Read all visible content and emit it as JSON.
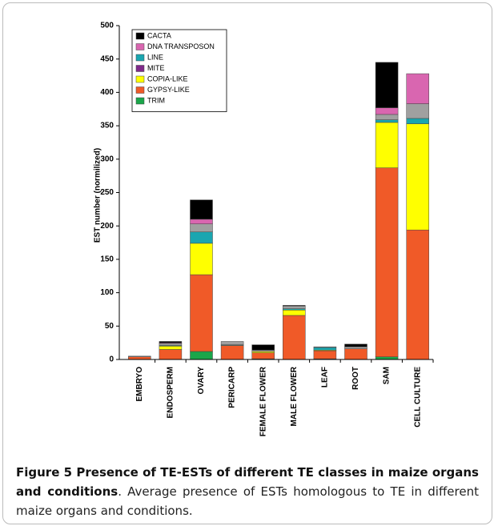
{
  "chart_data": {
    "type": "stacked_bar",
    "y_label": "EST number (normilized)",
    "categories": [
      "EMBRYO",
      "ENDOSPERM",
      "OVARY",
      "PERICARP",
      "FEMALE FLOWER",
      "MALE FLOWER",
      "LEAF",
      "ROOT",
      "SAM",
      "CELL CULTURE"
    ],
    "series": [
      {
        "name": "TRIM",
        "color": "#1aa64a",
        "values": [
          0,
          0,
          12,
          0,
          1,
          0,
          1,
          0,
          4,
          0
        ]
      },
      {
        "name": "GYPSY-LIKE",
        "color": "#f05a28",
        "values": [
          4,
          15,
          115,
          21,
          9,
          66,
          12,
          16,
          283,
          194
        ]
      },
      {
        "name": "COPIA-LIKE",
        "color": "#ffff00",
        "values": [
          0,
          5,
          47,
          0,
          2,
          8,
          1,
          0,
          68,
          159
        ]
      },
      {
        "name": "MITE",
        "color": "#7f2a8a",
        "values": [
          0,
          0,
          0,
          0,
          0,
          0,
          0,
          0,
          0,
          0
        ]
      },
      {
        "name": "LINE",
        "color": "#1aa6b0",
        "values": [
          0,
          1,
          17,
          1,
          0,
          2,
          4,
          0,
          4,
          8
        ]
      },
      {
        "name": null,
        "color": "#a0a0a0",
        "values": [
          1,
          3,
          12,
          5,
          2,
          4,
          1,
          3,
          8,
          22
        ]
      },
      {
        "name": "DNA TRANSPOSON",
        "color": "#d966b0",
        "values": [
          0,
          1,
          7,
          0,
          0,
          0,
          0,
          0,
          10,
          45
        ]
      },
      {
        "name": "CACTA",
        "color": "#000000",
        "values": [
          0,
          2,
          29,
          0,
          8,
          1,
          0,
          4,
          68,
          0
        ]
      }
    ],
    "ylim": [
      0,
      500
    ],
    "yticks": [
      0,
      50,
      100,
      150,
      200,
      250,
      300,
      350,
      400,
      450,
      500
    ],
    "legend": "top-left"
  },
  "caption": {
    "title": "Figure 5 Presence of TE-ESTs of different TE classes in maize organs and conditions",
    "text": ". Average presence of ESTs homologous to TE in different maize organs and conditions."
  }
}
